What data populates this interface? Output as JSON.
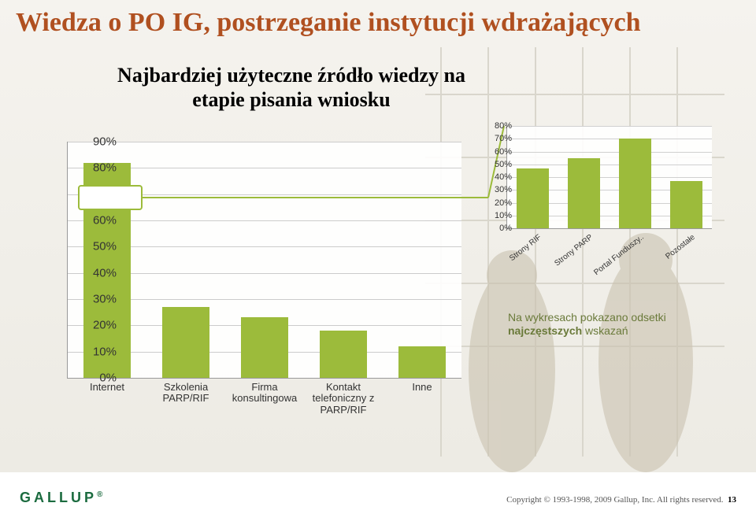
{
  "title": "Wiedza o PO IG, postrzeganie instytucji wdrażających",
  "subtitle": "Najbardziej użyteczne źródło wiedzy na etapie pisania wniosku",
  "main_chart": {
    "type": "bar",
    "categories": [
      "Internet",
      "Szkolenia\nPARP/RIF",
      "Firma\nkonsultingowa",
      "Kontakt\ntelefoniczny z\nPARP/RIF",
      "Inne"
    ],
    "values": [
      82,
      27,
      23,
      18,
      12
    ],
    "bar_color": "#9cbb3b",
    "ylim": [
      0,
      90
    ],
    "ytick_step": 10,
    "ytick_suffix": "%",
    "grid_color": "#cccccc",
    "background_color": "#ffffff",
    "label_fontsize": 13,
    "tick_fontsize": 15,
    "bar_width": 0.6
  },
  "inset_chart": {
    "type": "bar",
    "categories": [
      "Strony RIF",
      "Strony PARP",
      "Portal Funduszy..",
      "Pozostałe"
    ],
    "values": [
      47,
      55,
      70,
      37
    ],
    "bar_color": "#9cbb3b",
    "ylim": [
      0,
      80
    ],
    "ytick_step": 10,
    "ytick_suffix": "%",
    "grid_color": "#d0d0d0",
    "background_color": "#ffffff",
    "label_fontsize": 10,
    "tick_fontsize": 11,
    "bar_width": 0.64
  },
  "callout": {
    "source_bar_index": 0,
    "line_color": "#9cbb3b",
    "box_color": "#ffffff"
  },
  "note_prefix": "Na wykresach pokazano odsetki ",
  "note_em": "najczęstszych",
  "note_suffix": " wskazań",
  "note_color": "#6a7a3a",
  "footer": {
    "logo": "GALLUP",
    "copyright": "Copyright © 1993-1998, 2009 Gallup, Inc. All rights reserved.",
    "page": "13"
  },
  "colors": {
    "title": "#b05020",
    "text": "#333333",
    "accent": "#9cbb3b"
  }
}
